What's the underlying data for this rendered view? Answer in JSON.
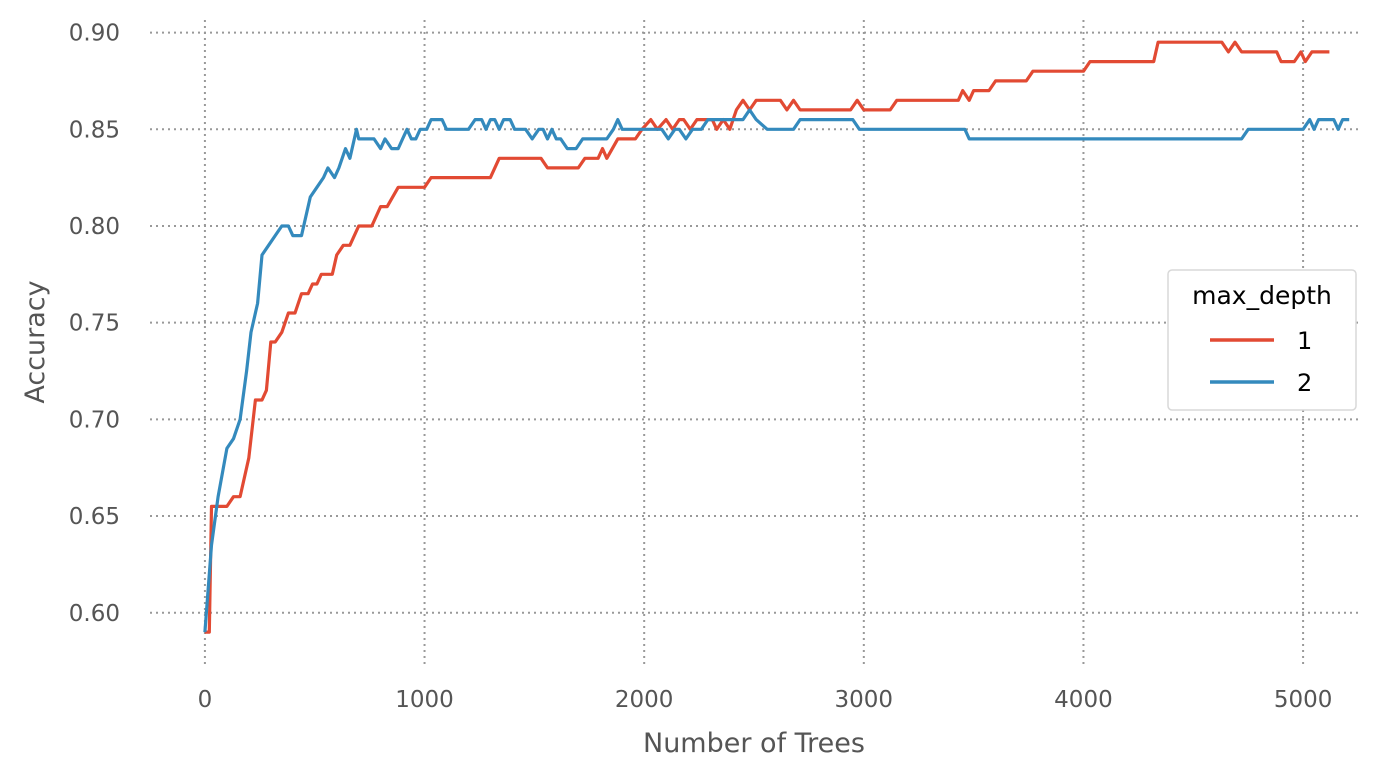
{
  "chart_data": {
    "type": "line",
    "title": "",
    "xlabel": "Number of Trees",
    "ylabel": "Accuracy",
    "xlim": [
      -250,
      5250
    ],
    "ylim": [
      0.5735,
      0.9065
    ],
    "xticks": [
      0,
      1000,
      2000,
      3000,
      4000,
      5000
    ],
    "xtick_labels": [
      "0",
      "1000",
      "2000",
      "3000",
      "4000",
      "5000"
    ],
    "yticks": [
      0.6,
      0.65,
      0.7,
      0.75,
      0.8,
      0.85,
      0.9
    ],
    "ytick_labels": [
      "0.60",
      "0.65",
      "0.70",
      "0.75",
      "0.80",
      "0.85",
      "0.90"
    ],
    "grid": true,
    "legend": {
      "title": "max_depth",
      "placement": "center-right"
    },
    "series": [
      {
        "name": "1",
        "color": "#E24A33",
        "points": [
          [
            0,
            0.59
          ],
          [
            20,
            0.59
          ],
          [
            30,
            0.655
          ],
          [
            100,
            0.655
          ],
          [
            130,
            0.66
          ],
          [
            160,
            0.66
          ],
          [
            200,
            0.68
          ],
          [
            230,
            0.71
          ],
          [
            260,
            0.71
          ],
          [
            280,
            0.715
          ],
          [
            300,
            0.74
          ],
          [
            320,
            0.74
          ],
          [
            350,
            0.745
          ],
          [
            380,
            0.755
          ],
          [
            410,
            0.755
          ],
          [
            440,
            0.765
          ],
          [
            470,
            0.765
          ],
          [
            490,
            0.77
          ],
          [
            510,
            0.77
          ],
          [
            530,
            0.775
          ],
          [
            550,
            0.775
          ],
          [
            580,
            0.775
          ],
          [
            600,
            0.785
          ],
          [
            630,
            0.79
          ],
          [
            660,
            0.79
          ],
          [
            700,
            0.8
          ],
          [
            760,
            0.8
          ],
          [
            800,
            0.81
          ],
          [
            830,
            0.81
          ],
          [
            880,
            0.82
          ],
          [
            1000,
            0.82
          ],
          [
            1030,
            0.825
          ],
          [
            1300,
            0.825
          ],
          [
            1340,
            0.835
          ],
          [
            1530,
            0.835
          ],
          [
            1560,
            0.83
          ],
          [
            1700,
            0.83
          ],
          [
            1730,
            0.835
          ],
          [
            1790,
            0.835
          ],
          [
            1810,
            0.84
          ],
          [
            1830,
            0.835
          ],
          [
            1880,
            0.845
          ],
          [
            1960,
            0.845
          ],
          [
            1990,
            0.85
          ],
          [
            2030,
            0.855
          ],
          [
            2060,
            0.85
          ],
          [
            2100,
            0.855
          ],
          [
            2130,
            0.85
          ],
          [
            2160,
            0.855
          ],
          [
            2180,
            0.855
          ],
          [
            2210,
            0.85
          ],
          [
            2240,
            0.855
          ],
          [
            2310,
            0.855
          ],
          [
            2330,
            0.85
          ],
          [
            2360,
            0.855
          ],
          [
            2390,
            0.85
          ],
          [
            2420,
            0.86
          ],
          [
            2450,
            0.865
          ],
          [
            2480,
            0.86
          ],
          [
            2510,
            0.865
          ],
          [
            2620,
            0.865
          ],
          [
            2650,
            0.86
          ],
          [
            2680,
            0.865
          ],
          [
            2710,
            0.86
          ],
          [
            2940,
            0.86
          ],
          [
            2970,
            0.865
          ],
          [
            3000,
            0.86
          ],
          [
            3120,
            0.86
          ],
          [
            3150,
            0.865
          ],
          [
            3430,
            0.865
          ],
          [
            3450,
            0.87
          ],
          [
            3480,
            0.865
          ],
          [
            3500,
            0.87
          ],
          [
            3570,
            0.87
          ],
          [
            3600,
            0.875
          ],
          [
            3740,
            0.875
          ],
          [
            3770,
            0.88
          ],
          [
            4000,
            0.88
          ],
          [
            4030,
            0.885
          ],
          [
            4320,
            0.885
          ],
          [
            4340,
            0.895
          ],
          [
            4630,
            0.895
          ],
          [
            4660,
            0.89
          ],
          [
            4690,
            0.895
          ],
          [
            4720,
            0.89
          ],
          [
            4880,
            0.89
          ],
          [
            4900,
            0.885
          ],
          [
            4960,
            0.885
          ],
          [
            4990,
            0.89
          ],
          [
            5010,
            0.885
          ],
          [
            5040,
            0.89
          ],
          [
            5120,
            0.89
          ]
        ]
      },
      {
        "name": "2",
        "color": "#348ABD",
        "points": [
          [
            0,
            0.59
          ],
          [
            30,
            0.635
          ],
          [
            60,
            0.66
          ],
          [
            100,
            0.685
          ],
          [
            130,
            0.69
          ],
          [
            160,
            0.7
          ],
          [
            190,
            0.725
          ],
          [
            210,
            0.745
          ],
          [
            240,
            0.76
          ],
          [
            260,
            0.785
          ],
          [
            290,
            0.79
          ],
          [
            320,
            0.795
          ],
          [
            350,
            0.8
          ],
          [
            380,
            0.8
          ],
          [
            400,
            0.795
          ],
          [
            440,
            0.795
          ],
          [
            480,
            0.815
          ],
          [
            510,
            0.82
          ],
          [
            540,
            0.825
          ],
          [
            560,
            0.83
          ],
          [
            590,
            0.825
          ],
          [
            610,
            0.83
          ],
          [
            640,
            0.84
          ],
          [
            660,
            0.835
          ],
          [
            690,
            0.85
          ],
          [
            700,
            0.845
          ],
          [
            770,
            0.845
          ],
          [
            800,
            0.84
          ],
          [
            820,
            0.845
          ],
          [
            850,
            0.84
          ],
          [
            880,
            0.84
          ],
          [
            900,
            0.845
          ],
          [
            920,
            0.85
          ],
          [
            940,
            0.845
          ],
          [
            960,
            0.845
          ],
          [
            980,
            0.85
          ],
          [
            1010,
            0.85
          ],
          [
            1030,
            0.855
          ],
          [
            1080,
            0.855
          ],
          [
            1100,
            0.85
          ],
          [
            1200,
            0.85
          ],
          [
            1230,
            0.855
          ],
          [
            1260,
            0.855
          ],
          [
            1280,
            0.85
          ],
          [
            1300,
            0.855
          ],
          [
            1320,
            0.855
          ],
          [
            1340,
            0.85
          ],
          [
            1360,
            0.855
          ],
          [
            1390,
            0.855
          ],
          [
            1410,
            0.85
          ],
          [
            1460,
            0.85
          ],
          [
            1490,
            0.845
          ],
          [
            1520,
            0.85
          ],
          [
            1540,
            0.85
          ],
          [
            1560,
            0.845
          ],
          [
            1580,
            0.85
          ],
          [
            1600,
            0.845
          ],
          [
            1620,
            0.845
          ],
          [
            1650,
            0.84
          ],
          [
            1690,
            0.84
          ],
          [
            1720,
            0.845
          ],
          [
            1830,
            0.845
          ],
          [
            1860,
            0.85
          ],
          [
            1880,
            0.855
          ],
          [
            1900,
            0.85
          ],
          [
            2080,
            0.85
          ],
          [
            2110,
            0.845
          ],
          [
            2140,
            0.85
          ],
          [
            2160,
            0.85
          ],
          [
            2190,
            0.845
          ],
          [
            2220,
            0.85
          ],
          [
            2260,
            0.85
          ],
          [
            2290,
            0.855
          ],
          [
            2450,
            0.855
          ],
          [
            2480,
            0.86
          ],
          [
            2510,
            0.855
          ],
          [
            2560,
            0.85
          ],
          [
            2680,
            0.85
          ],
          [
            2710,
            0.855
          ],
          [
            2950,
            0.855
          ],
          [
            2980,
            0.85
          ],
          [
            3460,
            0.85
          ],
          [
            3480,
            0.845
          ],
          [
            4720,
            0.845
          ],
          [
            4750,
            0.85
          ],
          [
            5000,
            0.85
          ],
          [
            5030,
            0.855
          ],
          [
            5050,
            0.85
          ],
          [
            5070,
            0.855
          ],
          [
            5140,
            0.855
          ],
          [
            5160,
            0.85
          ],
          [
            5180,
            0.855
          ],
          [
            5210,
            0.855
          ]
        ]
      }
    ]
  }
}
